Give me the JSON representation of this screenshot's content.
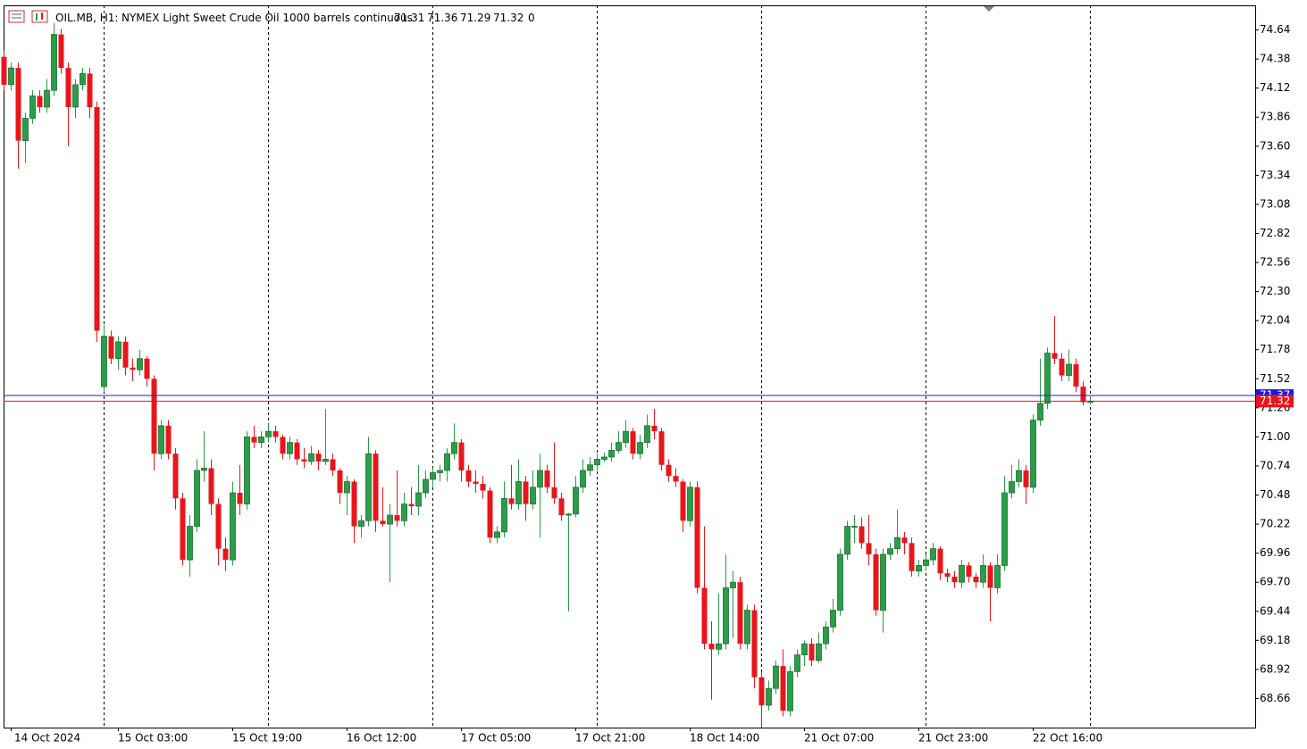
{
  "chart_data": {
    "type": "candlestick",
    "symbol": "OIL.MB, H1:",
    "description": "NYMEX Light Sweet Crude Oil 1000 barrels continuous",
    "header_value": 0,
    "up_color": "#2a9d48",
    "down_color": "#e8161b",
    "bid": 71.32,
    "ask": 71.37,
    "bid_color": "#e8161b",
    "ask_color": "#1a1ae6",
    "ylim": [
      68.4,
      74.86
    ],
    "yticks": [
      74.64,
      74.38,
      74.12,
      73.86,
      {
        "value": 73.6,
        "label": "73.60"
      },
      73.34,
      73.08,
      72.82,
      72.56,
      {
        "value": 72.3,
        "label": "72.30"
      },
      72.04,
      71.78,
      71.52,
      71.26,
      {
        "value": 71,
        "label": "71.00"
      },
      70.74,
      70.48,
      70.22,
      69.96,
      {
        "value": 69.7,
        "label": "69.70"
      },
      69.44,
      69.18,
      68.92,
      68.66
    ],
    "categories": [
      null,
      "14 Oct 2024",
      null,
      null,
      null,
      null,
      null,
      null,
      null,
      null,
      null,
      null,
      null,
      null,
      null,
      null,
      "15 Oct 03:00",
      null,
      null,
      null,
      null,
      null,
      null,
      null,
      null,
      null,
      null,
      null,
      null,
      null,
      null,
      null,
      "15 Oct 19:00",
      null,
      null,
      null,
      null,
      null,
      null,
      null,
      null,
      null,
      null,
      null,
      null,
      null,
      null,
      null,
      "16 Oct 12:00",
      null,
      null,
      null,
      null,
      null,
      null,
      null,
      null,
      null,
      null,
      null,
      null,
      null,
      null,
      null,
      "17 Oct 05:00",
      null,
      null,
      null,
      null,
      null,
      null,
      null,
      null,
      null,
      null,
      null,
      null,
      null,
      null,
      null,
      "17 Oct 21:00",
      null,
      null,
      null,
      null,
      null,
      null,
      null,
      null,
      null,
      null,
      null,
      null,
      null,
      null,
      null,
      "18 Oct 14:00",
      null,
      null,
      null,
      null,
      null,
      null,
      null,
      null,
      null,
      null,
      null,
      null,
      null,
      null,
      null,
      "21 Oct 07:00",
      null,
      null,
      null,
      null,
      null,
      null,
      null,
      null,
      null,
      null,
      null,
      null,
      null,
      null,
      null,
      "21 Oct 23:00",
      null,
      null,
      null,
      null,
      null,
      null,
      null,
      null,
      null,
      null,
      null,
      null,
      null,
      null,
      null,
      "22 Oct 16:00",
      null,
      null,
      null,
      null,
      null,
      null,
      null,
      null
    ],
    "candles": [
      [
        74.4,
        74.45,
        74.1,
        74.15
      ],
      [
        74.15,
        74.35,
        74.1,
        74.3
      ],
      [
        74.3,
        74.35,
        73.4,
        73.65
      ],
      [
        73.65,
        73.9,
        73.45,
        73.85
      ],
      [
        73.85,
        74.1,
        73.8,
        74.05
      ],
      [
        74.05,
        74.1,
        73.9,
        73.95
      ],
      [
        73.95,
        74.2,
        73.9,
        74.1
      ],
      [
        74.1,
        74.7,
        74.05,
        74.6
      ],
      [
        74.6,
        74.65,
        74.25,
        74.3
      ],
      [
        74.3,
        74.35,
        73.6,
        73.95
      ],
      [
        73.95,
        74.2,
        73.85,
        74.15
      ],
      [
        74.15,
        74.3,
        74.1,
        74.25
      ],
      [
        74.25,
        74.3,
        73.85,
        73.95
      ],
      [
        73.95,
        74.0,
        71.85,
        71.95
      ],
      [
        71.45,
        72.0,
        71.4,
        71.9
      ],
      [
        71.9,
        71.95,
        71.65,
        71.7
      ],
      [
        71.7,
        71.9,
        71.6,
        71.85
      ],
      [
        71.85,
        71.9,
        71.55,
        71.62
      ],
      [
        71.62,
        71.7,
        71.5,
        71.6
      ],
      [
        71.6,
        71.78,
        71.55,
        71.7
      ],
      [
        71.7,
        71.72,
        71.45,
        71.52
      ],
      [
        71.52,
        71.55,
        70.7,
        70.85
      ],
      [
        70.85,
        71.15,
        70.8,
        71.1
      ],
      [
        71.1,
        71.15,
        70.8,
        70.85
      ],
      [
        70.85,
        70.9,
        70.35,
        70.45
      ],
      [
        70.45,
        70.5,
        69.85,
        69.9
      ],
      [
        69.9,
        70.3,
        69.75,
        70.2
      ],
      [
        70.2,
        70.8,
        70.15,
        70.7
      ],
      [
        70.7,
        71.05,
        70.6,
        70.72
      ],
      [
        70.72,
        70.8,
        70.3,
        70.4
      ],
      [
        70.4,
        70.45,
        69.85,
        70.0
      ],
      [
        70.0,
        70.1,
        69.8,
        69.9
      ],
      [
        69.9,
        70.6,
        69.85,
        70.5
      ],
      [
        70.5,
        70.75,
        70.3,
        70.4
      ],
      [
        70.4,
        71.05,
        70.35,
        71.0
      ],
      [
        71.0,
        71.1,
        70.9,
        70.95
      ],
      [
        70.95,
        71.05,
        70.9,
        71.0
      ],
      [
        71.0,
        71.12,
        70.95,
        71.05
      ],
      [
        71.05,
        71.1,
        70.95,
        71.0
      ],
      [
        71.0,
        71.02,
        70.8,
        70.85
      ],
      [
        70.85,
        71.0,
        70.8,
        70.95
      ],
      [
        70.95,
        70.98,
        70.75,
        70.8
      ],
      [
        70.8,
        70.9,
        70.72,
        70.78
      ],
      [
        70.78,
        70.92,
        70.75,
        70.85
      ],
      [
        70.85,
        70.88,
        70.7,
        70.78
      ],
      [
        70.78,
        71.25,
        70.75,
        70.8
      ],
      [
        70.8,
        70.85,
        70.65,
        70.7
      ],
      [
        70.7,
        70.72,
        70.4,
        70.5
      ],
      [
        70.5,
        70.65,
        70.3,
        70.6
      ],
      [
        70.6,
        70.62,
        70.05,
        70.2
      ],
      [
        70.2,
        70.3,
        70.1,
        70.25
      ],
      [
        70.25,
        71.0,
        70.2,
        70.85
      ],
      [
        70.85,
        70.88,
        70.15,
        70.25
      ],
      [
        70.25,
        70.55,
        70.2,
        70.22
      ],
      [
        70.22,
        70.4,
        69.7,
        70.3
      ],
      [
        70.3,
        70.7,
        70.2,
        70.25
      ],
      [
        70.25,
        70.5,
        70.2,
        70.4
      ],
      [
        70.4,
        70.55,
        70.3,
        70.38
      ],
      [
        70.38,
        70.75,
        70.3,
        70.5
      ],
      [
        70.5,
        70.7,
        70.45,
        70.62
      ],
      [
        70.62,
        70.72,
        70.55,
        70.68
      ],
      [
        70.68,
        70.75,
        70.6,
        70.7
      ],
      [
        70.7,
        70.9,
        70.6,
        70.85
      ],
      [
        70.85,
        71.12,
        70.8,
        70.95
      ],
      [
        70.95,
        70.98,
        70.6,
        70.7
      ],
      [
        70.7,
        70.75,
        70.55,
        70.6
      ],
      [
        70.6,
        70.7,
        70.5,
        70.58
      ],
      [
        70.58,
        70.65,
        70.45,
        70.52
      ],
      [
        70.52,
        70.55,
        70.05,
        70.1
      ],
      [
        70.1,
        70.2,
        70.05,
        70.15
      ],
      [
        70.15,
        70.6,
        70.1,
        70.45
      ],
      [
        70.45,
        70.75,
        70.35,
        70.4
      ],
      [
        70.4,
        70.8,
        70.35,
        70.6
      ],
      [
        70.6,
        70.65,
        70.25,
        70.4
      ],
      [
        70.4,
        70.7,
        70.35,
        70.55
      ],
      [
        70.55,
        70.85,
        70.1,
        70.7
      ],
      [
        70.7,
        70.75,
        70.5,
        70.55
      ],
      [
        70.55,
        70.95,
        70.4,
        70.45
      ],
      [
        70.45,
        70.5,
        70.25,
        70.3
      ],
      [
        70.3,
        70.32,
        69.44,
        70.31
      ],
      [
        70.31,
        70.65,
        70.28,
        70.55
      ],
      [
        70.55,
        70.8,
        70.5,
        70.7
      ],
      [
        70.7,
        70.82,
        70.65,
        70.75
      ],
      [
        70.75,
        70.85,
        70.7,
        70.8
      ],
      [
        70.8,
        70.86,
        70.78,
        70.82
      ],
      [
        70.82,
        70.95,
        70.78,
        70.88
      ],
      [
        70.88,
        71.05,
        70.85,
        70.95
      ],
      [
        70.95,
        71.15,
        70.9,
        71.05
      ],
      [
        71.05,
        71.08,
        70.8,
        70.85
      ],
      [
        70.85,
        71.02,
        70.8,
        70.95
      ],
      [
        70.95,
        71.2,
        70.9,
        71.1
      ],
      [
        71.1,
        71.25,
        70.98,
        71.05
      ],
      [
        71.05,
        71.08,
        70.7,
        70.75
      ],
      [
        70.75,
        70.8,
        70.6,
        70.65
      ],
      [
        70.65,
        70.72,
        70.55,
        70.6
      ],
      [
        70.6,
        70.62,
        70.15,
        70.25
      ],
      [
        70.25,
        70.6,
        70.2,
        70.55
      ],
      [
        70.55,
        70.6,
        69.6,
        69.65
      ],
      [
        69.65,
        70.2,
        69.1,
        69.15
      ],
      [
        69.15,
        69.35,
        68.65,
        69.1
      ],
      [
        69.1,
        69.6,
        69.05,
        69.15
      ],
      [
        69.15,
        69.95,
        69.1,
        69.65
      ],
      [
        69.65,
        69.8,
        69.2,
        69.7
      ],
      [
        69.7,
        69.75,
        69.1,
        69.15
      ],
      [
        69.15,
        69.5,
        69.1,
        69.45
      ],
      [
        69.45,
        69.5,
        68.75,
        68.85
      ],
      [
        68.85,
        68.9,
        68.4,
        68.6
      ],
      [
        68.6,
        68.82,
        68.55,
        68.75
      ],
      [
        68.75,
        69.0,
        68.7,
        68.95
      ],
      [
        68.95,
        69.1,
        68.5,
        68.55
      ],
      [
        68.55,
        68.95,
        68.5,
        68.9
      ],
      [
        68.9,
        69.1,
        68.85,
        69.05
      ],
      [
        69.05,
        69.18,
        68.95,
        69.15
      ],
      [
        69.15,
        69.2,
        68.95,
        69.0
      ],
      [
        69.0,
        69.25,
        68.98,
        69.15
      ],
      [
        69.15,
        69.35,
        69.1,
        69.3
      ],
      [
        69.3,
        69.55,
        69.25,
        69.45
      ],
      [
        69.45,
        70.0,
        69.4,
        69.95
      ],
      [
        69.95,
        70.25,
        69.9,
        70.2
      ],
      [
        70.2,
        70.3,
        70.05,
        70.2
      ],
      [
        70.2,
        70.28,
        70.0,
        70.05
      ],
      [
        70.05,
        70.3,
        69.85,
        69.95
      ],
      [
        69.95,
        70.0,
        69.4,
        69.45
      ],
      [
        69.45,
        70.0,
        69.25,
        69.95
      ],
      [
        69.95,
        70.05,
        69.9,
        70.0
      ],
      [
        70.0,
        70.35,
        69.95,
        70.1
      ],
      [
        70.1,
        70.15,
        69.95,
        70.05
      ],
      [
        70.05,
        70.1,
        69.75,
        69.8
      ],
      [
        69.8,
        69.9,
        69.75,
        69.85
      ],
      [
        69.85,
        69.95,
        69.8,
        69.9
      ],
      [
        69.9,
        70.05,
        69.85,
        70.0
      ],
      [
        70.0,
        70.02,
        69.72,
        69.78
      ],
      [
        69.78,
        69.82,
        69.7,
        69.75
      ],
      [
        69.75,
        69.8,
        69.65,
        69.7
      ],
      [
        69.7,
        69.9,
        69.65,
        69.85
      ],
      [
        69.85,
        69.88,
        69.7,
        69.75
      ],
      [
        69.75,
        69.78,
        69.65,
        69.7
      ],
      [
        69.7,
        69.95,
        69.65,
        69.85
      ],
      [
        69.85,
        69.88,
        69.35,
        69.65
      ],
      [
        69.65,
        69.95,
        69.6,
        69.85
      ],
      [
        69.85,
        70.65,
        69.8,
        70.5
      ],
      [
        70.5,
        70.75,
        70.45,
        70.6
      ],
      [
        70.6,
        70.8,
        70.55,
        70.7
      ],
      [
        70.7,
        70.75,
        70.4,
        70.55
      ],
      [
        70.55,
        71.2,
        70.5,
        71.15
      ],
      [
        71.15,
        71.7,
        71.1,
        71.3
      ],
      [
        71.3,
        71.8,
        71.25,
        71.75
      ],
      [
        71.75,
        72.08,
        71.65,
        71.7
      ],
      [
        71.7,
        71.75,
        71.5,
        71.55
      ],
      [
        71.55,
        71.78,
        71.5,
        71.65
      ],
      [
        71.65,
        71.7,
        71.4,
        71.45
      ],
      [
        71.45,
        71.5,
        71.28,
        71.31
      ],
      [
        71.31,
        71.36,
        71.29,
        71.32
      ]
    ]
  }
}
